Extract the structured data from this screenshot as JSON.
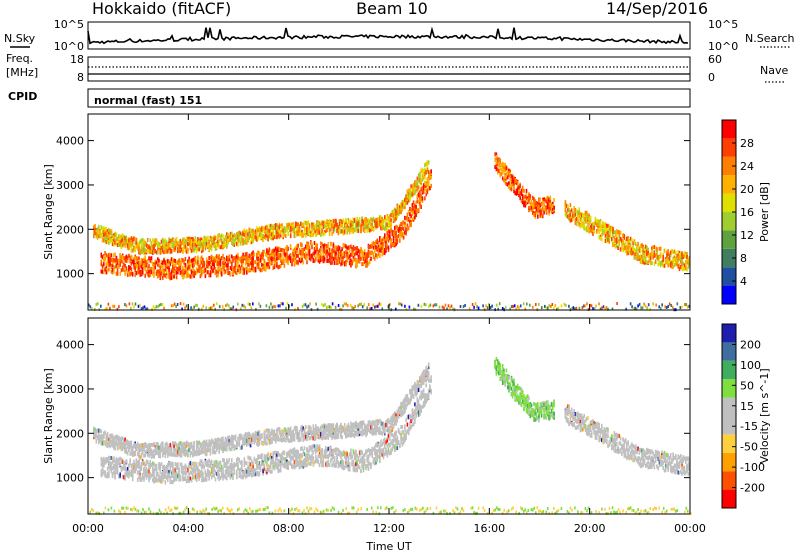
{
  "header": {
    "station": "Hokkaido (fitACF)",
    "beam": "Beam 10",
    "date": "14/Sep/2016"
  },
  "top_panels": {
    "nsky_label": "N.Sky",
    "nsky_ticks": [
      "10^5",
      "10^0"
    ],
    "nsearch_label": "N.Search",
    "nsearch_ticks": [
      "10^5",
      "10^0"
    ],
    "freq_label_line1": "Freq.",
    "freq_label_line2": "[MHz]",
    "freq_ticks": [
      "18",
      "8"
    ],
    "nave_label": "Nave",
    "nave_ticks": [
      "60",
      "0"
    ],
    "cpid_label": "CPID",
    "cpid_text": "normal (fast) 151"
  },
  "colors": {
    "power_scale": [
      "#0000ff",
      "#1f4fa0",
      "#3f7f5f",
      "#5fa03f",
      "#9fcf2f",
      "#e0e000",
      "#ffb000",
      "#ff7f00",
      "#ff3f00",
      "#ff0000"
    ],
    "velocity_scale": [
      "#ff0000",
      "#ff4f00",
      "#ff9f00",
      "#ffcf3f",
      "#c0c0c0",
      "#c0c0c0",
      "#7fdf3f",
      "#3faf5f",
      "#3f6f9f",
      "#1f1faf"
    ],
    "ground_scatter": "#c0c0c0"
  },
  "chart_data": [
    {
      "type": "heatmap",
      "name": "Power",
      "quantity": "backscatter power",
      "ylabel": "Slant Range [km]",
      "yticks": [
        "1000",
        "2000",
        "3000",
        "4000"
      ],
      "ylim": [
        180,
        4600
      ],
      "xlim_hours": [
        0,
        24
      ],
      "colorbar_label": "Power [dB]",
      "colorbar_ticks": [
        "4",
        "8",
        "12",
        "16",
        "20",
        "24",
        "28"
      ],
      "colorbar_range": [
        0,
        30
      ],
      "echo_bands": [
        {
          "t": [
            0.5,
            3.0,
            6.0,
            9.0,
            11.0,
            12.5,
            13.7
          ],
          "r": [
            1300,
            1150,
            1250,
            1550,
            1400,
            2000,
            3200
          ],
          "dr": 220,
          "level": "high"
        },
        {
          "t": [
            0.2,
            2.0,
            4.5,
            7.5,
            10.0,
            12.0,
            13.6
          ],
          "r": [
            2000,
            1650,
            1700,
            2000,
            2100,
            2200,
            3500
          ],
          "dr": 150,
          "level": "mid"
        },
        {
          "t": [
            16.2,
            17.0,
            17.8,
            18.6
          ],
          "r": [
            3600,
            3000,
            2500,
            2600
          ],
          "dr": 200,
          "level": "high"
        },
        {
          "t": [
            19.0,
            20.5,
            22.0,
            24.0
          ],
          "r": [
            2500,
            2000,
            1500,
            1300
          ],
          "dr": 200,
          "level": "mid"
        }
      ]
    },
    {
      "type": "heatmap",
      "name": "Velocity",
      "quantity": "line-of-sight velocity",
      "ylabel": "Slant Range [km]",
      "yticks": [
        "1000",
        "2000",
        "3000",
        "4000"
      ],
      "ylim": [
        180,
        4600
      ],
      "xlim_hours": [
        0,
        24
      ],
      "colorbar_label": "Velocity [m s^-1]",
      "colorbar_ticks": [
        "-200",
        "-100",
        "-50",
        "-15",
        "15",
        "50",
        "100",
        "200"
      ],
      "colorbar_range": [
        -250,
        250
      ],
      "echo_bands": [
        {
          "t": [
            0.5,
            3.0,
            6.0,
            9.0,
            11.0,
            12.5,
            13.7
          ],
          "r": [
            1300,
            1150,
            1250,
            1550,
            1400,
            2000,
            3200
          ],
          "dr": 220,
          "level": "ground"
        },
        {
          "t": [
            0.2,
            2.0,
            4.5,
            7.5,
            10.0,
            12.0,
            13.6
          ],
          "r": [
            2000,
            1650,
            1700,
            2000,
            2100,
            2200,
            3500
          ],
          "dr": 150,
          "level": "ground"
        },
        {
          "t": [
            16.2,
            17.0,
            17.8,
            18.6
          ],
          "r": [
            3600,
            3000,
            2500,
            2600
          ],
          "dr": 200,
          "level": "low"
        },
        {
          "t": [
            19.0,
            20.5,
            22.0,
            24.0
          ],
          "r": [
            2500,
            2000,
            1500,
            1300
          ],
          "dr": 200,
          "level": "ground"
        }
      ]
    }
  ],
  "x_axis": {
    "label": "Time UT",
    "ticks": [
      "00:00",
      "04:00",
      "08:00",
      "12:00",
      "16:00",
      "20:00",
      "00:00"
    ],
    "tick_hours": [
      0,
      4,
      8,
      12,
      16,
      20,
      24
    ]
  }
}
